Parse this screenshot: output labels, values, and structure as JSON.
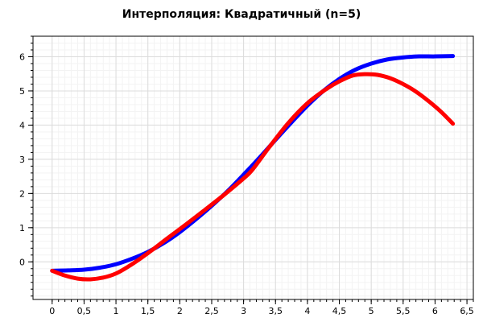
{
  "chart_data": {
    "type": "line",
    "title": "Интерполяция: Квадратичный (n=5)",
    "xlabel": "",
    "ylabel": "",
    "xlim": [
      -0.3,
      6.6
    ],
    "ylim": [
      -1.1,
      6.6
    ],
    "grid": true,
    "legend": "none",
    "x_ticks": [
      0,
      0.5,
      1,
      1.5,
      2,
      2.5,
      3,
      3.5,
      4,
      4.5,
      5,
      5.5,
      6,
      6.5
    ],
    "x_tick_labels": [
      "0",
      "0,5",
      "1",
      "1,5",
      "2",
      "2,5",
      "3",
      "3,5",
      "4",
      "4,5",
      "5",
      "5,5",
      "6",
      "6,5"
    ],
    "y_ticks": [
      0,
      1,
      2,
      3,
      4,
      5,
      6
    ],
    "y_tick_labels": [
      "0",
      "1",
      "2",
      "3",
      "4",
      "5",
      "6"
    ],
    "series": [
      {
        "color": "#0000ff",
        "x": [
          0,
          0.25,
          0.5,
          0.75,
          1,
          1.25,
          1.5,
          1.75,
          2,
          2.25,
          2.5,
          2.75,
          3,
          3.25,
          3.5,
          3.75,
          4,
          4.25,
          4.5,
          4.75,
          5,
          5.25,
          5.5,
          5.75,
          6,
          6.28
        ],
        "y": [
          -0.26,
          -0.25,
          -0.23,
          -0.17,
          -0.07,
          0.09,
          0.29,
          0.55,
          0.87,
          1.24,
          1.64,
          2.07,
          2.55,
          3.05,
          3.57,
          4.08,
          4.57,
          5.0,
          5.35,
          5.62,
          5.8,
          5.92,
          5.98,
          6.01,
          6.01,
          6.02
        ]
      },
      {
        "color": "#ff0000",
        "x": [
          0,
          0.2,
          0.4,
          0.6,
          0.8,
          1.0,
          1.2,
          1.4,
          1.57,
          1.8,
          2.1,
          2.4,
          2.7,
          3.0,
          3.14,
          3.4,
          3.7,
          4.0,
          4.3,
          4.5,
          4.71,
          4.9,
          5.1,
          5.3,
          5.5,
          5.7,
          5.9,
          6.1,
          6.28
        ],
        "y": [
          -0.26,
          -0.4,
          -0.49,
          -0.51,
          -0.46,
          -0.34,
          -0.13,
          0.12,
          0.35,
          0.68,
          1.1,
          1.53,
          1.97,
          2.44,
          2.7,
          3.35,
          4.06,
          4.64,
          5.06,
          5.28,
          5.45,
          5.49,
          5.47,
          5.37,
          5.2,
          4.98,
          4.7,
          4.38,
          4.04
        ]
      }
    ]
  }
}
